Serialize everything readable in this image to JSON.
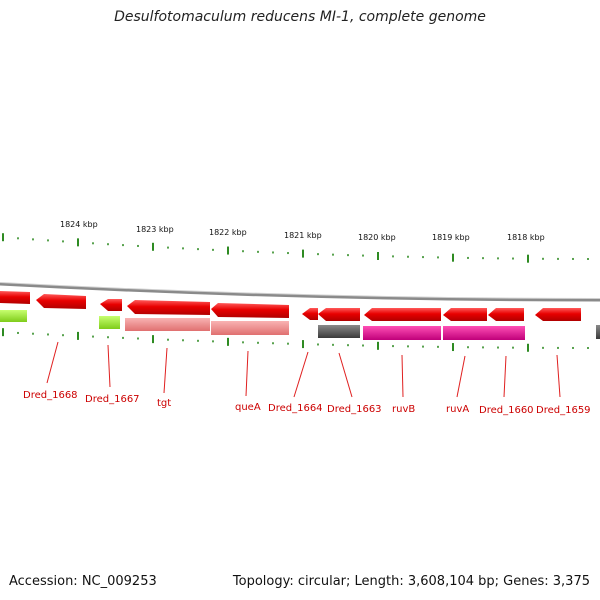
{
  "title": "Desulfotomaculum reducens MI-1, complete genome",
  "footer": {
    "accession": "Accession: NC_009253",
    "stats": "Topology: circular; Length: 3,608,104 bp; Genes: 3,375"
  },
  "colors": {
    "gene_red": "#e80000",
    "gene_red_light": "#f08080",
    "gene_green": "#99ee33",
    "gene_grey": "#555555",
    "gene_magenta": "#e0108a",
    "tick": "#2e8b22",
    "label": "#cc0000",
    "backbone": "#8a8a8a"
  },
  "kbp_labels": [
    "1824 kbp",
    "1823 kbp",
    "1822 kbp",
    "1821 kbp",
    "1820 kbp",
    "1819 kbp",
    "1818 kbp"
  ],
  "genes": [
    {
      "label": "Dred_1668"
    },
    {
      "label": "Dred_1667"
    },
    {
      "label": "tgt"
    },
    {
      "label": "queA"
    },
    {
      "label": "Dred_1664"
    },
    {
      "label": "Dred_1663"
    },
    {
      "label": "ruvB"
    },
    {
      "label": "ruvA"
    },
    {
      "label": "Dred_1660"
    },
    {
      "label": "Dred_1659"
    }
  ]
}
